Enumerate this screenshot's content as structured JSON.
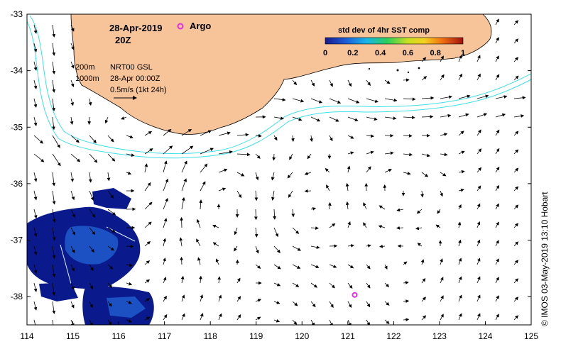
{
  "header": {
    "date": "28-Apr-2019",
    "time": "20Z",
    "argo_label": "Argo"
  },
  "info": {
    "contour_200": "200m",
    "contour_1000": "1000m",
    "product": "NRT00 GSL",
    "analysis_time": "28-Apr 00:00Z",
    "scale": "0.5m/s (1kt 24h)"
  },
  "colorbar": {
    "title": "std dev of 4hr SST comp",
    "ticks": [
      "0",
      "0.2",
      "0.4",
      "0.6",
      "0.8",
      "1"
    ]
  },
  "credit": "© IMOS 03-May-2019 13:10 Hobart",
  "colors": {
    "land": "#f7c49a",
    "bathymetry": "#3ee0e8",
    "argo": "#e030e0",
    "sst_dark": "#0a1a8c",
    "sst_mid": "#1f5fd0"
  },
  "chart_data": {
    "type": "map",
    "x_axis": {
      "ticks": [
        114,
        115,
        116,
        117,
        118,
        119,
        120,
        121,
        122,
        123,
        124,
        125
      ],
      "range": [
        114,
        125
      ]
    },
    "y_axis": {
      "ticks": [
        -33,
        -34,
        -35,
        -36,
        -37,
        -38
      ],
      "range": [
        -38.5,
        -33
      ]
    },
    "argo_float": {
      "lon": 121.15,
      "lat": -37.97
    },
    "colorbar_range": [
      0,
      1
    ]
  }
}
